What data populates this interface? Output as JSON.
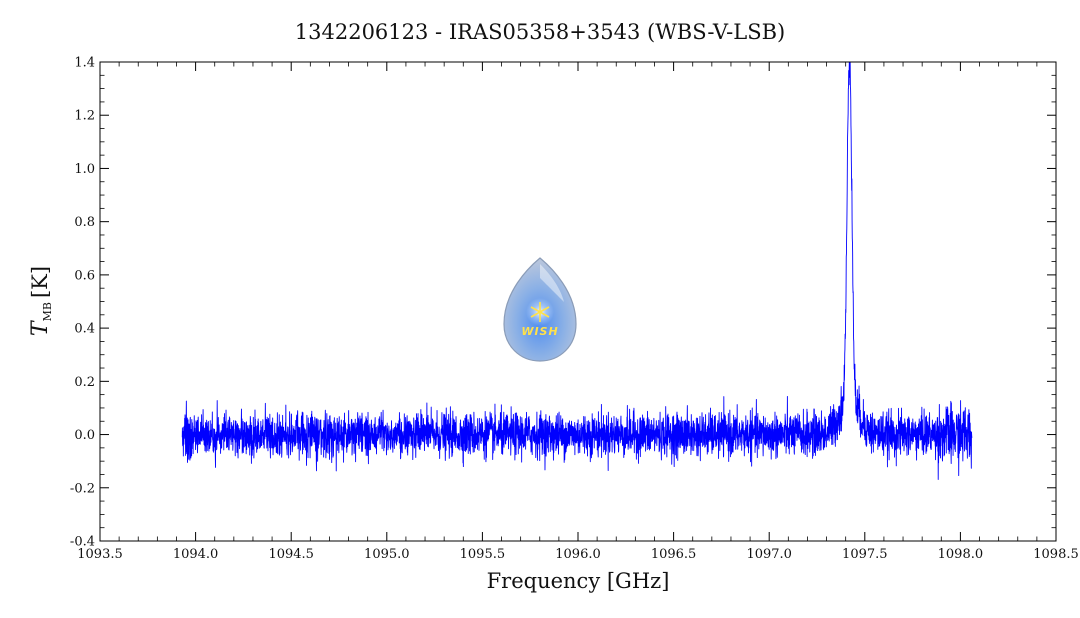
{
  "chart_data": {
    "type": "line",
    "title": "1342206123 - IRAS05358+3543 (WBS-V-LSB)",
    "xlabel": "Frequency [GHz]",
    "ylabel_main": "T",
    "ylabel_sub": "MB",
    "ylabel_unit": "[K]",
    "xlim": [
      1093.5,
      1098.5
    ],
    "ylim": [
      -0.4,
      1.4
    ],
    "x_ticks": [
      1093.5,
      1094.0,
      1094.5,
      1095.0,
      1095.5,
      1096.0,
      1096.5,
      1097.0,
      1097.5,
      1098.0,
      1098.5
    ],
    "x_tick_labels": [
      "1093.5",
      "1094.0",
      "1094.5",
      "1095.0",
      "1095.5",
      "1096.0",
      "1096.5",
      "1097.0",
      "1097.5",
      "1098.0",
      "1098.5"
    ],
    "y_ticks": [
      -0.4,
      -0.2,
      0.0,
      0.2,
      0.4,
      0.6,
      0.8,
      1.0,
      1.2,
      1.4
    ],
    "y_tick_labels": [
      "-0.4",
      "-0.2",
      "0.0",
      "0.2",
      "0.4",
      "0.6",
      "0.8",
      "1.0",
      "1.2",
      "1.4"
    ],
    "grid": false,
    "series": [
      {
        "color": "#0000ff",
        "x_range": [
          1093.93,
          1098.06
        ],
        "baseline": 0.0,
        "noise_rms": 0.04,
        "peak": {
          "center": 1097.42,
          "amplitude": 1.32,
          "width": 0.012,
          "wing_amplitude": 0.13,
          "wing_width": 0.05
        }
      }
    ],
    "logo": {
      "text": "WISH"
    }
  }
}
